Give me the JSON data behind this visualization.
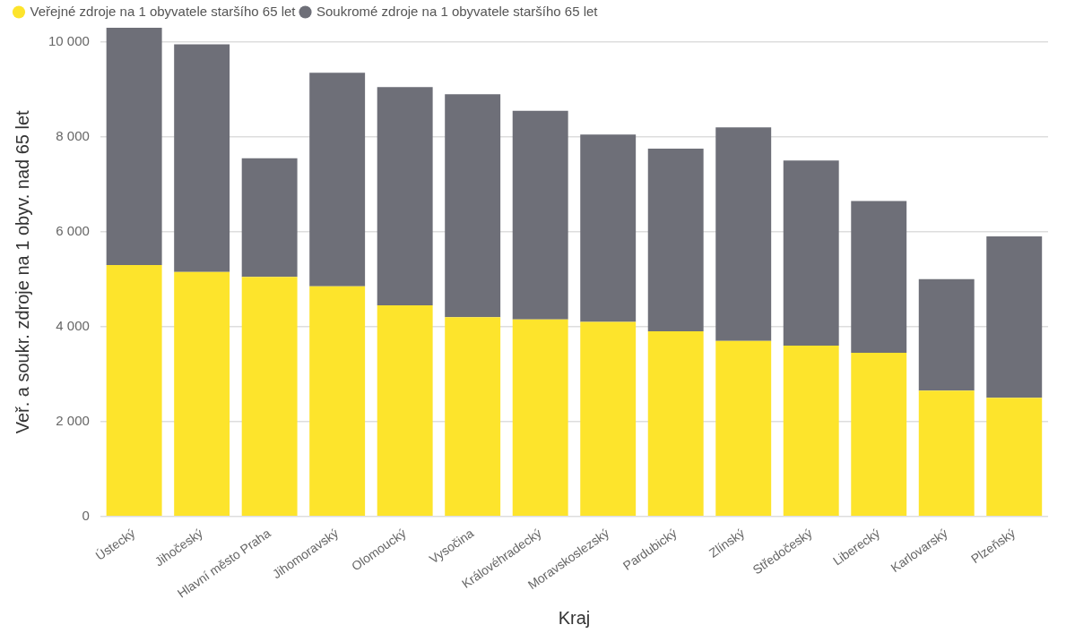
{
  "chart_data": {
    "type": "bar",
    "stacked": true,
    "xlabel": "Kraj",
    "ylabel": "Veř. a soukr. zdroje na 1 obyv. nad 65 let",
    "categories": [
      "Ústecký",
      "Jihočeský",
      "Hlavní město Praha",
      "Jihomoravský",
      "Olomoucký",
      "Vysočina",
      "Královéhradecký",
      "Moravskoslezský",
      "Pardubický",
      "Zlínský",
      "Středočeský",
      "Liberecký",
      "Karlovarský",
      "Plzeňský"
    ],
    "series": [
      {
        "name": "Veřejné zdroje na 1 obyvatele staršího 65 let",
        "color": "#fde42c",
        "values": [
          5300,
          5150,
          5050,
          4850,
          4450,
          4200,
          4150,
          4100,
          3900,
          3700,
          3600,
          3450,
          2650,
          2500
        ]
      },
      {
        "name": "Soukromé zdroje na 1 obyvatele staršího 65 let",
        "color": "#6e6f78",
        "values": [
          5000,
          4800,
          2500,
          4500,
          4600,
          4700,
          4400,
          3950,
          3850,
          4500,
          3900,
          3200,
          2350,
          3400
        ]
      }
    ],
    "ylim": [
      0,
      10300
    ],
    "yticks": [
      {
        "value": 0,
        "label": "0"
      },
      {
        "value": 2000,
        "label": "2 000"
      },
      {
        "value": 4000,
        "label": "4 000"
      },
      {
        "value": 6000,
        "label": "6 000"
      },
      {
        "value": 8000,
        "label": "8 000"
      },
      {
        "value": 10000,
        "label": "10 000"
      }
    ],
    "grid": "y",
    "legend": "top left"
  }
}
